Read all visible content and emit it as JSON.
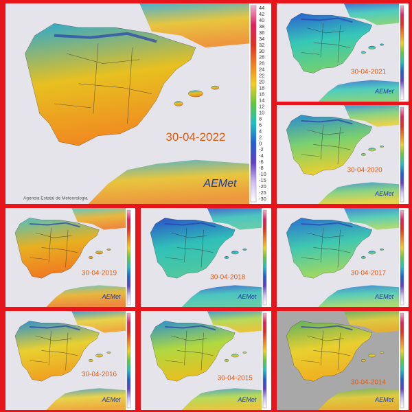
{
  "panels": [
    {
      "date": "30-04-2022"
    },
    {
      "date": "30-04-2021"
    },
    {
      "date": "30-04-2020"
    },
    {
      "date": "30-04-2019"
    },
    {
      "date": "30-04-2018"
    },
    {
      "date": "30-04-2017"
    },
    {
      "date": "30-04-2016"
    },
    {
      "date": "30-04-2015"
    },
    {
      "date": "30-04-2014"
    }
  ],
  "legend": {
    "labels": [
      44,
      42,
      40,
      38,
      36,
      34,
      32,
      30,
      28,
      26,
      24,
      22,
      20,
      18,
      16,
      14,
      12,
      10,
      8,
      6,
      4,
      2,
      0,
      -2,
      -4,
      -6,
      -8,
      -10,
      -15,
      -20,
      -25,
      -30
    ]
  },
  "logo": "AEMet",
  "agency": "Agencia Estatal de Meteorologia"
}
